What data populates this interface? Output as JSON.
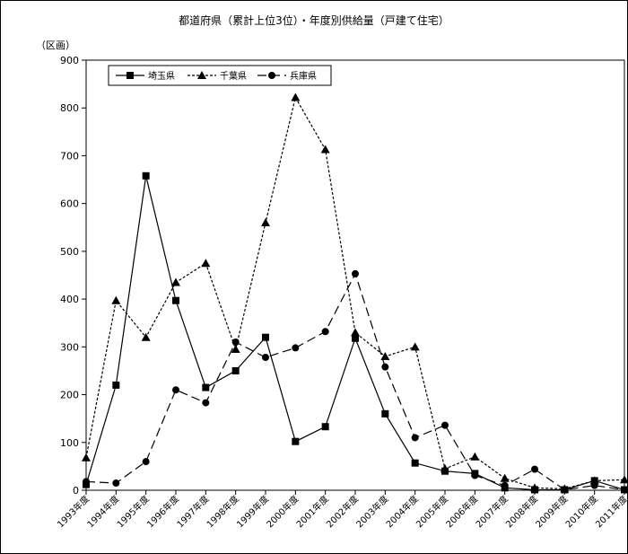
{
  "chart_data": {
    "type": "line",
    "title": "都道府県（累計上位3位）・年度別供給量（戸建て住宅）",
    "ylabel": "（区画）",
    "xlabel": "",
    "ylim": [
      0,
      900
    ],
    "yticks": [
      "900",
      "800",
      "700",
      "600",
      "500",
      "400",
      "300",
      "200",
      "100",
      "0"
    ],
    "categories": [
      "1993年度",
      "1994年度",
      "1995年度",
      "1996年度",
      "1997年度",
      "1998年度",
      "1999年度",
      "2000年度",
      "2001年度",
      "2002年度",
      "2003年度",
      "2004年度",
      "2005年度",
      "2006年度",
      "2007年度",
      "2008年度",
      "2009年度",
      "2010年度",
      "2011年度"
    ],
    "legend_position": "top-left",
    "grid": false,
    "series": [
      {
        "name": "埼玉県",
        "marker": "square",
        "dash": "solid",
        "values": [
          12,
          220,
          658,
          397,
          215,
          250,
          320,
          102,
          133,
          318,
          160,
          57,
          40,
          35,
          5,
          1,
          1,
          20,
          1
        ]
      },
      {
        "name": "千葉県",
        "marker": "triangle",
        "dash": "dotted",
        "values": [
          68,
          397,
          320,
          435,
          475,
          295,
          560,
          822,
          713,
          330,
          280,
          300,
          45,
          70,
          25,
          5,
          3,
          20,
          22
        ]
      },
      {
        "name": "兵庫県",
        "marker": "circle",
        "dash": "dashed",
        "values": [
          18,
          15,
          60,
          210,
          183,
          310,
          278,
          298,
          332,
          453,
          258,
          110,
          136,
          31,
          10,
          44,
          1,
          10,
          1
        ]
      }
    ]
  }
}
